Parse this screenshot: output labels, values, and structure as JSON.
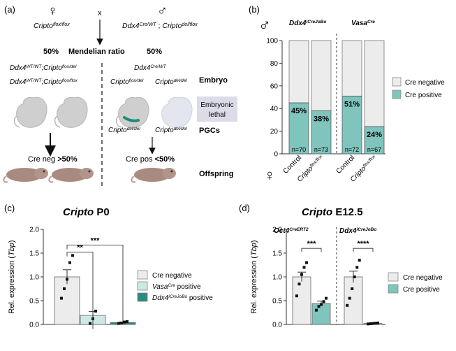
{
  "panel_a": {
    "letter": "(a)",
    "female_parent": "Cripto",
    "female_parent_sup": "flox/flox",
    "cross": "x",
    "male_parent_1": "Ddx4",
    "male_parent_1_sup": "Cre/WT",
    "male_parent_sep": " ; ",
    "male_parent_2": "Cripto",
    "male_parent_2_sup": "del/flox",
    "ratio_left": "50%",
    "ratio_label": "Mendelian ratio",
    "ratio_right": "50%",
    "left_geno_1a": "Ddx4",
    "left_geno_1a_sup": "WT/WT",
    "left_geno_1b": ";Cripto",
    "left_geno_1b_sup": "flox/del",
    "left_geno_2a": "Ddx4",
    "left_geno_2a_sup": "WT/WT",
    "left_geno_2b": ";Cripto",
    "left_geno_2b_sup": "flox/flox",
    "right_geno_top": "Ddx4",
    "right_geno_top_sup": "Cre/WT",
    "right_geno_emb1": "Cripto",
    "right_geno_emb1_sup": "flox/del",
    "right_geno_emb2": "Cripto",
    "right_geno_emb2_sup": "del/del",
    "right_geno_pgc1": "Cripto",
    "right_geno_pgc1_sup": "del/del",
    "right_geno_pgc2": "Cripto",
    "right_geno_pgc2_sup": "del/del",
    "embryo_label": "Embryo",
    "lethal_line1": "Embryonic",
    "lethal_line2": "lethal",
    "pgc_label": "PGCs",
    "offspring_label": "Offspring",
    "cre_neg_text": "Cre neg ",
    "cre_neg_pct": ">50%",
    "cre_pos_text": "Cre pos ",
    "cre_pos_pct": "<50%"
  },
  "panel_b": {
    "letter": "(b)",
    "male_symbol": "♂",
    "female_symbol": "♀",
    "group1": "Ddx4",
    "group1_sup": "iCreJoBo",
    "group2": "Vasa",
    "group2_sup": "Cre",
    "legend": [
      "Cre negative",
      "Cre positive"
    ],
    "colors": {
      "neg": "#ececec",
      "pos": "#7fc4bd"
    }
  },
  "panel_c": {
    "letter": "(c)",
    "title_gene": "Cripto",
    "title_stage": " P0",
    "legend_neg": "Cre negative",
    "legend_vasa": "Vasa",
    "legend_vasa_sup": "Cre",
    "legend_vasa_tail": " positive",
    "legend_ddx4": "Ddx4",
    "legend_ddx4_sup": "iCreJoBo",
    "legend_ddx4_tail": " positive",
    "colors": {
      "neg": "#ececec",
      "vasa": "#cde9e7",
      "ddx4": "#2a8a80"
    }
  },
  "panel_d": {
    "letter": "(d)",
    "title_gene": "Cripto",
    "title_stage": " E12.5",
    "group1": "Oct4",
    "group1_sup": "CreERT2",
    "group2": "Ddx4",
    "group2_sup": "iCreJoBo",
    "legend": [
      "Cre negative",
      "Cre positive"
    ],
    "colors": {
      "neg": "#ececec",
      "pos": "#7fc4bd"
    }
  },
  "chart_data": [
    {
      "type": "bar",
      "stacked": true,
      "categories": [
        "Control",
        "Cripto flox/flox",
        "Control",
        "Cripto flox/flox"
      ],
      "category_labels": [
        {
          "main": "Control",
          "sup": ""
        },
        {
          "main": "Cripto",
          "sup": "flox/flox"
        },
        {
          "main": "Control",
          "sup": ""
        },
        {
          "main": "Cripto",
          "sup": "flox/flox"
        }
      ],
      "groups": [
        "Ddx4 iCreJoBo",
        "Vasa Cre"
      ],
      "series": [
        {
          "name": "Cre positive",
          "values": [
            45,
            38,
            51,
            24
          ]
        },
        {
          "name": "Cre negative",
          "values": [
            55,
            62,
            49,
            76
          ]
        }
      ],
      "value_labels": [
        "45%",
        "38%",
        "51%",
        "24%"
      ],
      "n_labels": [
        "n=70",
        "n=73",
        "n=72",
        "n=67"
      ],
      "ylim": [
        0,
        100
      ],
      "yticks": [
        0,
        20,
        40,
        60,
        80,
        100
      ],
      "legend_position": "right"
    },
    {
      "type": "bar",
      "title": "Cripto P0",
      "categories": [
        "Cre negative",
        "Vasa Cre positive",
        "Ddx4 iCreJoBo positive"
      ],
      "values": [
        1.0,
        0.19,
        0.04
      ],
      "errors": [
        0.15,
        0.08,
        0.01
      ],
      "points": [
        [
          0.55,
          0.75,
          0.95,
          1.3,
          1.45
        ],
        [
          0.02,
          0.12,
          0.28
        ],
        [
          0.02,
          0.03,
          0.05,
          0.06
        ]
      ],
      "ylabel_prefix": "Rel. expression (",
      "ylabel_italic": "Tbp",
      "ylabel_suffix": ")",
      "ylim": [
        0,
        2.0
      ],
      "yticks": [
        "0.0",
        "0.5",
        "1.0",
        "1.5",
        "2.0"
      ],
      "significance": [
        {
          "from": 0,
          "to": 1,
          "label": "**"
        },
        {
          "from": 0,
          "to": 2,
          "label": "***"
        }
      ]
    },
    {
      "type": "bar",
      "title": "Cripto E12.5",
      "groups": [
        "Oct4 CreERT2",
        "Ddx4 iCreJoBo"
      ],
      "series": [
        {
          "name": "Cre negative",
          "values": [
            1.0,
            1.0
          ],
          "errors": [
            0.1,
            0.12
          ]
        },
        {
          "name": "Cre positive",
          "values": [
            0.44,
            0.02
          ],
          "errors": [
            0.05,
            0.005
          ]
        }
      ],
      "points": [
        [
          0.6,
          0.85,
          1.05,
          1.2,
          1.3
        ],
        [
          0.3,
          0.38,
          0.42,
          0.48,
          0.55
        ],
        [
          0.4,
          0.55,
          0.75,
          1.0,
          1.2,
          1.35
        ],
        [
          0.01,
          0.015,
          0.02,
          0.025,
          0.03
        ]
      ],
      "ylabel_prefix": "Rel. expression (",
      "ylabel_italic": "Tbp",
      "ylabel_suffix": ")",
      "ylim": [
        0,
        2.0
      ],
      "yticks": [
        "0.0",
        "0.5",
        "1.0",
        "1.5",
        "2.0"
      ],
      "significance": [
        {
          "group": 0,
          "label": "***"
        },
        {
          "group": 1,
          "label": "****"
        }
      ],
      "legend_position": "right"
    }
  ]
}
